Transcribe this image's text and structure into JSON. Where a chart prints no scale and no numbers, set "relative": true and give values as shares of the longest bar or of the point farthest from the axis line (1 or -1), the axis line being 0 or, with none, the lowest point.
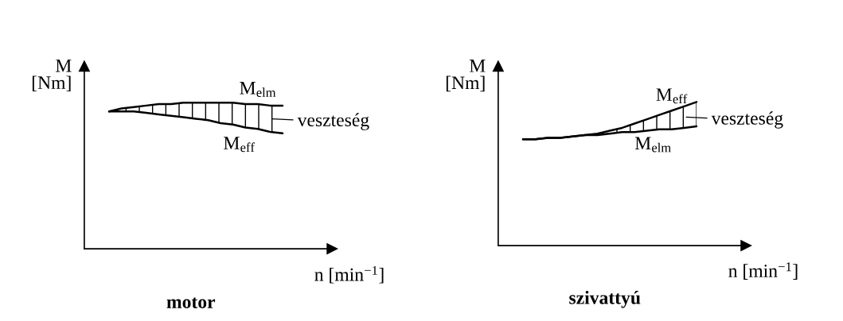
{
  "chart_data": [
    {
      "type": "line",
      "relative": true,
      "title": "motor",
      "xlabel": "n [min$^{−1}$]",
      "ylabel": "M\n[Nm]",
      "categories": [
        null,
        null,
        null,
        null,
        null,
        null,
        null,
        null,
        null,
        null,
        null,
        null,
        null,
        null,
        null,
        null,
        null,
        null,
        null,
        null,
        null
      ],
      "series": [
        {
          "name": "M$_{elm}$",
          "color": "#000000",
          "values": [
            null,
            null,
            0.94,
            0.96,
            0.97,
            0.98,
            0.99,
            0.99,
            1.0,
            1.0,
            1.0,
            1.0,
            1.0,
            0.99,
            0.99,
            0.98,
            0.98,
            null,
            null,
            null,
            null
          ],
          "lower": [
            null,
            null,
            0.94,
            0.94,
            0.94,
            0.93,
            0.92,
            0.91,
            0.9,
            0.89,
            0.88,
            0.86,
            0.85,
            0.83,
            0.82,
            0.8,
            0.79,
            null,
            null,
            null,
            null
          ],
          "upper": [
            null,
            null,
            0.94,
            0.96,
            0.97,
            0.98,
            0.99,
            0.99,
            1.0,
            1.0,
            1.0,
            1.0,
            1.0,
            0.99,
            0.99,
            0.98,
            0.98,
            null,
            null,
            null,
            null
          ]
        },
        {
          "name": "M$_{eff}$",
          "color": "#000000",
          "values": [
            null,
            null,
            0.94,
            0.94,
            0.94,
            0.93,
            0.92,
            0.91,
            0.9,
            0.89,
            0.88,
            0.86,
            0.85,
            0.83,
            0.82,
            0.8,
            0.79,
            null,
            null,
            null,
            null
          ]
        }
      ],
      "annotations": [
        "veszteség"
      ]
    },
    {
      "type": "line",
      "relative": true,
      "title": "szivattyú",
      "xlabel": "n [min$^{−1}$]",
      "ylabel": "M\n[Nm]",
      "categories": [
        null,
        null,
        null,
        null,
        null,
        null,
        null,
        null,
        null,
        null,
        null,
        null,
        null,
        null,
        null,
        null,
        null,
        null,
        null,
        null,
        null
      ],
      "series": [
        {
          "name": "M$_{eff}$",
          "color": "#000000",
          "values": [
            null,
            null,
            0.74,
            0.74,
            0.75,
            0.75,
            0.76,
            0.77,
            0.78,
            0.8,
            0.82,
            0.85,
            0.88,
            0.91,
            0.94,
            0.97,
            1.0,
            null,
            null,
            null,
            null
          ],
          "lower": [
            null,
            null,
            0.74,
            0.74,
            0.75,
            0.75,
            0.76,
            0.77,
            0.77,
            0.78,
            0.79,
            0.79,
            0.8,
            0.81,
            0.81,
            0.82,
            0.83,
            null,
            null,
            null,
            null
          ],
          "upper": [
            null,
            null,
            0.74,
            0.74,
            0.75,
            0.75,
            0.76,
            0.77,
            0.78,
            0.8,
            0.82,
            0.85,
            0.88,
            0.91,
            0.94,
            0.97,
            1.0,
            null,
            null,
            null,
            null
          ]
        },
        {
          "name": "M$_{elm}$",
          "color": "#000000",
          "values": [
            null,
            null,
            0.74,
            0.74,
            0.75,
            0.75,
            0.76,
            0.77,
            0.77,
            0.78,
            0.79,
            0.79,
            0.8,
            0.81,
            0.81,
            0.82,
            0.83,
            null,
            null,
            null,
            null
          ]
        }
      ],
      "annotations": [
        "veszteség"
      ]
    }
  ]
}
